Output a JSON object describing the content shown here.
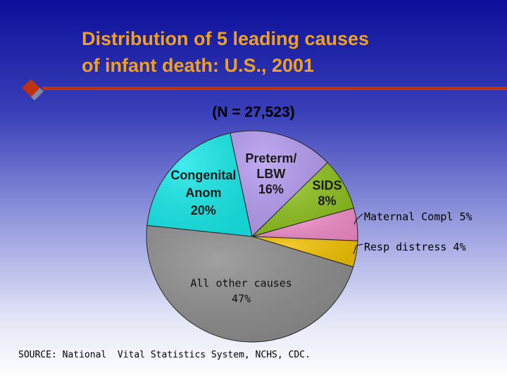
{
  "slide": {
    "title_line1": "Distribution of 5 leading causes",
    "title_line2": "of infant death: U.S., 2001",
    "n_label": "(N = 27,523)",
    "source": "SOURCE: National  Vital Statistics System, NCHS, CDC."
  },
  "chart_data": {
    "type": "pie",
    "title": "(N = 27,523)",
    "slices": [
      {
        "label_lines": [
          "Preterm/",
          "LBW",
          "16%"
        ],
        "value": 16,
        "color": "#b49af0"
      },
      {
        "label_lines": [
          "SIDS",
          "8%"
        ],
        "value": 8,
        "color": "#8cbf1c"
      },
      {
        "label_lines": [
          "Maternal Compl 5%"
        ],
        "value": 5,
        "color": "#f08cc8"
      },
      {
        "label_lines": [
          "Resp distress 4%"
        ],
        "value": 4,
        "color": "#f0c000"
      },
      {
        "label_lines": [
          "All other causes",
          "47%"
        ],
        "value": 47,
        "color": "#8c8c8c"
      },
      {
        "label_lines": [
          "Congenital",
          "Anom",
          "20%"
        ],
        "value": 20,
        "color": "#18e8e8"
      }
    ]
  }
}
